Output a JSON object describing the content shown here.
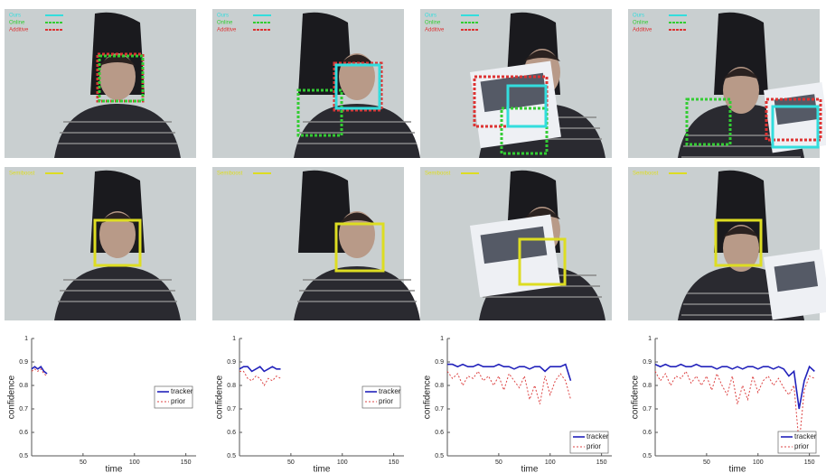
{
  "photo_legends": {
    "top": [
      {
        "label": "Ours",
        "color": "#33dddd"
      },
      {
        "label": "Online",
        "color": "#33cc33"
      },
      {
        "label": "Additive",
        "color": "#dd3333"
      }
    ],
    "bottom": [
      {
        "label": "Semiboost",
        "color": "#dddd22"
      }
    ]
  },
  "chart_data": [
    {
      "type": "line",
      "xlabel": "time",
      "ylabel": "confidence",
      "xlim": [
        0,
        160
      ],
      "ylim": [
        0.5,
        1
      ],
      "xticks": [
        50,
        100,
        150
      ],
      "yticks": [
        0.5,
        0.6,
        0.7,
        0.8,
        0.9,
        1
      ],
      "legend": "right",
      "x": [
        0,
        3,
        6,
        9,
        12,
        15
      ],
      "series": [
        {
          "name": "tracker",
          "color": "#2222bb",
          "style": "solid",
          "values": [
            0.87,
            0.88,
            0.87,
            0.88,
            0.86,
            0.85
          ]
        },
        {
          "name": "prior",
          "color": "#dd4444",
          "style": "dashed",
          "values": [
            0.86,
            0.87,
            0.86,
            0.87,
            0.85,
            0.84
          ]
        }
      ]
    },
    {
      "type": "line",
      "xlabel": "time",
      "ylabel": "confidence",
      "xlim": [
        0,
        160
      ],
      "ylim": [
        0.5,
        1
      ],
      "xticks": [
        50,
        100,
        150
      ],
      "yticks": [
        0.5,
        0.6,
        0.7,
        0.8,
        0.9,
        1
      ],
      "legend": "right",
      "x": [
        0,
        4,
        8,
        12,
        16,
        20,
        24,
        28,
        32,
        36,
        40
      ],
      "series": [
        {
          "name": "tracker",
          "color": "#2222bb",
          "style": "solid",
          "values": [
            0.87,
            0.88,
            0.88,
            0.86,
            0.87,
            0.88,
            0.86,
            0.87,
            0.88,
            0.87,
            0.87
          ]
        },
        {
          "name": "prior",
          "color": "#dd4444",
          "style": "dashed",
          "values": [
            0.86,
            0.86,
            0.83,
            0.82,
            0.84,
            0.83,
            0.8,
            0.83,
            0.82,
            0.84,
            0.83
          ]
        }
      ]
    },
    {
      "type": "line",
      "xlabel": "time",
      "ylabel": "confidence",
      "xlim": [
        0,
        160
      ],
      "ylim": [
        0.5,
        1
      ],
      "xticks": [
        50,
        100,
        150
      ],
      "yticks": [
        0.5,
        0.6,
        0.7,
        0.8,
        0.9,
        1
      ],
      "legend": "lower right",
      "x": [
        0,
        5,
        10,
        15,
        20,
        25,
        30,
        35,
        40,
        45,
        50,
        55,
        60,
        65,
        70,
        75,
        80,
        85,
        90,
        95,
        100,
        105,
        110,
        115,
        120
      ],
      "series": [
        {
          "name": "tracker",
          "color": "#2222bb",
          "style": "solid",
          "values": [
            0.89,
            0.89,
            0.88,
            0.89,
            0.88,
            0.88,
            0.89,
            0.88,
            0.88,
            0.88,
            0.89,
            0.88,
            0.88,
            0.87,
            0.88,
            0.88,
            0.87,
            0.88,
            0.88,
            0.86,
            0.88,
            0.88,
            0.88,
            0.89,
            0.82
          ]
        },
        {
          "name": "prior",
          "color": "#dd4444",
          "style": "dashed",
          "values": [
            0.86,
            0.83,
            0.85,
            0.8,
            0.84,
            0.83,
            0.86,
            0.82,
            0.84,
            0.8,
            0.84,
            0.78,
            0.85,
            0.82,
            0.79,
            0.84,
            0.74,
            0.8,
            0.72,
            0.84,
            0.76,
            0.82,
            0.85,
            0.82,
            0.74
          ]
        }
      ]
    },
    {
      "type": "line",
      "xlabel": "time",
      "ylabel": "confidence",
      "xlim": [
        0,
        160
      ],
      "ylim": [
        0.5,
        1
      ],
      "xticks": [
        50,
        100,
        150
      ],
      "yticks": [
        0.5,
        0.6,
        0.7,
        0.8,
        0.9,
        1
      ],
      "legend": "lower right",
      "x": [
        0,
        5,
        10,
        15,
        20,
        25,
        30,
        35,
        40,
        45,
        50,
        55,
        60,
        65,
        70,
        75,
        80,
        85,
        90,
        95,
        100,
        105,
        110,
        115,
        120,
        125,
        130,
        135,
        140,
        145,
        150,
        155
      ],
      "series": [
        {
          "name": "tracker",
          "color": "#2222bb",
          "style": "solid",
          "values": [
            0.89,
            0.88,
            0.89,
            0.88,
            0.88,
            0.89,
            0.88,
            0.88,
            0.89,
            0.88,
            0.88,
            0.88,
            0.87,
            0.88,
            0.88,
            0.87,
            0.88,
            0.87,
            0.88,
            0.88,
            0.87,
            0.88,
            0.88,
            0.87,
            0.88,
            0.87,
            0.84,
            0.86,
            0.7,
            0.82,
            0.88,
            0.86
          ]
        },
        {
          "name": "prior",
          "color": "#dd4444",
          "style": "dashed",
          "values": [
            0.86,
            0.82,
            0.85,
            0.8,
            0.84,
            0.83,
            0.86,
            0.81,
            0.84,
            0.8,
            0.84,
            0.78,
            0.85,
            0.8,
            0.76,
            0.84,
            0.72,
            0.8,
            0.74,
            0.84,
            0.77,
            0.82,
            0.84,
            0.8,
            0.83,
            0.79,
            0.76,
            0.8,
            0.55,
            0.78,
            0.84,
            0.83
          ]
        }
      ]
    }
  ]
}
